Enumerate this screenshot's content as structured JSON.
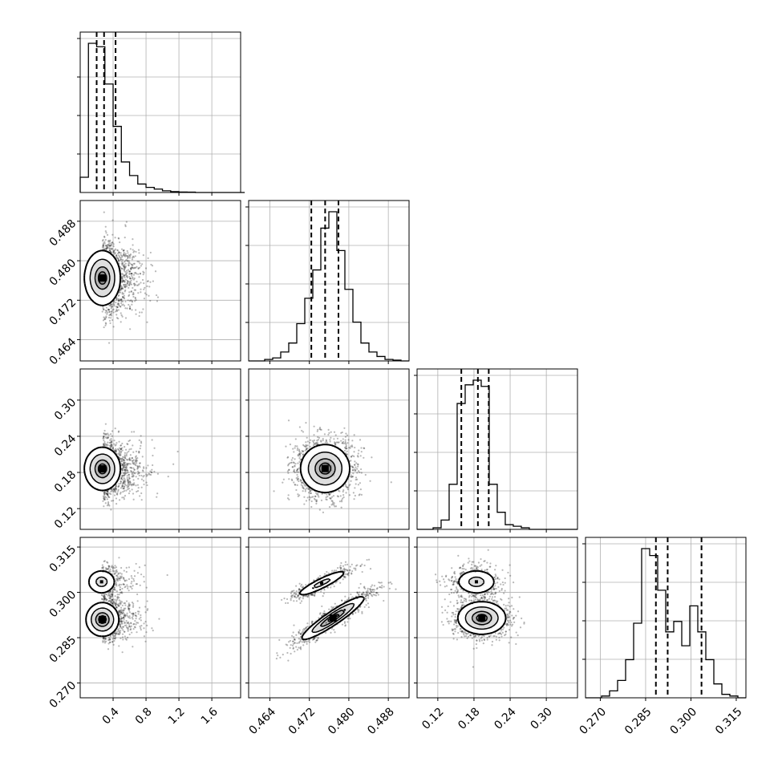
{
  "chart_data": {
    "type": "corner",
    "style": {
      "ink": "#000000",
      "grid": "#b0b0b0",
      "grid_on": true,
      "scatter_color": "#000000"
    },
    "parameters": [
      {
        "key": "p0",
        "range": [
          0.0,
          1.95
        ],
        "ticks": [
          0.4,
          0.8,
          1.2,
          1.6
        ],
        "tick_labels": [
          "0.4",
          "0.8",
          "1.2",
          "1.6"
        ],
        "quantiles": [
          0.2,
          0.29,
          0.43
        ]
      },
      {
        "key": "p1",
        "range": [
          0.4597,
          0.4922
        ],
        "ticks": [
          0.464,
          0.472,
          0.48,
          0.488
        ],
        "tick_labels": [
          "0.464",
          "0.472",
          "0.480",
          "0.488"
        ],
        "quantiles": [
          0.4724,
          0.4752,
          0.4779
        ]
      },
      {
        "key": "p2",
        "range": [
          0.0856,
          0.3517
        ],
        "ticks": [
          0.12,
          0.18,
          0.24,
          0.3
        ],
        "tick_labels": [
          "0.12",
          "0.18",
          "0.24",
          "0.30"
        ],
        "quantiles": [
          0.159,
          0.1865,
          0.2045
        ]
      },
      {
        "key": "p3",
        "range": [
          0.2651,
          0.3182
        ],
        "ticks": [
          0.27,
          0.285,
          0.3,
          0.315
        ],
        "tick_labels": [
          "0.270",
          "0.285",
          "0.300",
          "0.315"
        ],
        "quantiles": [
          0.2884,
          0.2923,
          0.3035
        ]
      }
    ],
    "histograms": [
      {
        "param": 0,
        "bin_width": 0.1,
        "start": 0.0,
        "counts": [
          0.09,
          0.88,
          0.86,
          0.64,
          0.39,
          0.18,
          0.1,
          0.05,
          0.03,
          0.02,
          0.01,
          0.005,
          0.003,
          0.002,
          0,
          0,
          0,
          0,
          0,
          0
        ]
      },
      {
        "param": 1,
        "start": 0.4597,
        "bin_width": 0.001625,
        "counts": [
          0,
          0,
          0.01,
          0.02,
          0.06,
          0.12,
          0.25,
          0.42,
          0.61,
          0.89,
          1.0,
          0.74,
          0.48,
          0.26,
          0.12,
          0.06,
          0.03,
          0.01,
          0.005,
          0
        ]
      },
      {
        "param": 2,
        "start": 0.0856,
        "bin_width": 0.0133,
        "counts": [
          0,
          0,
          0.01,
          0.06,
          0.29,
          0.81,
          0.93,
          0.96,
          0.92,
          0.29,
          0.11,
          0.03,
          0.02,
          0.01,
          0,
          0,
          0,
          0,
          0,
          0
        ]
      },
      {
        "param": 3,
        "start": 0.2651,
        "bin_width": 0.002655,
        "counts": [
          0,
          0,
          0.01,
          0.04,
          0.1,
          0.22,
          0.43,
          0.86,
          0.82,
          0.62,
          0.38,
          0.44,
          0.3,
          0.53,
          0.38,
          0.22,
          0.08,
          0.02,
          0.01,
          0
        ]
      }
    ],
    "pairs": [
      {
        "x": 0,
        "y": 1,
        "modes": [
          {
            "mx": 0.27,
            "my": 0.4765,
            "sx": 0.11,
            "sy": 0.0028,
            "rho": 0.0,
            "w": 1.0
          }
        ]
      },
      {
        "x": 0,
        "y": 2,
        "modes": [
          {
            "mx": 0.27,
            "my": 0.186,
            "sx": 0.11,
            "sy": 0.018,
            "rho": 0.0,
            "w": 1.0
          }
        ]
      },
      {
        "x": 0,
        "y": 3,
        "modes": [
          {
            "mx": 0.27,
            "my": 0.291,
            "sx": 0.1,
            "sy": 0.0028,
            "rho": 0.0,
            "w": 0.66
          },
          {
            "mx": 0.26,
            "my": 0.3035,
            "sx": 0.095,
            "sy": 0.0022,
            "rho": 0.0,
            "w": 0.34
          }
        ]
      },
      {
        "x": 1,
        "y": 2,
        "modes": [
          {
            "mx": 0.4752,
            "my": 0.1865,
            "sx": 0.0025,
            "sy": 0.02,
            "rho": 0.0,
            "w": 1.0
          }
        ]
      },
      {
        "x": 1,
        "y": 3,
        "modes": [
          {
            "mx": 0.4768,
            "my": 0.2915,
            "sx": 0.0032,
            "sy": 0.0036,
            "rho": 0.93,
            "w": 0.66
          },
          {
            "mx": 0.4745,
            "my": 0.303,
            "sx": 0.0028,
            "sy": 0.0024,
            "rho": 0.9,
            "w": 0.34
          }
        ]
      },
      {
        "x": 2,
        "y": 3,
        "modes": [
          {
            "mx": 0.193,
            "my": 0.2915,
            "sx": 0.02,
            "sy": 0.0027,
            "rho": 0.0,
            "w": 0.66
          },
          {
            "mx": 0.184,
            "my": 0.3035,
            "sx": 0.018,
            "sy": 0.0022,
            "rho": 0.0,
            "w": 0.34
          }
        ]
      }
    ]
  }
}
